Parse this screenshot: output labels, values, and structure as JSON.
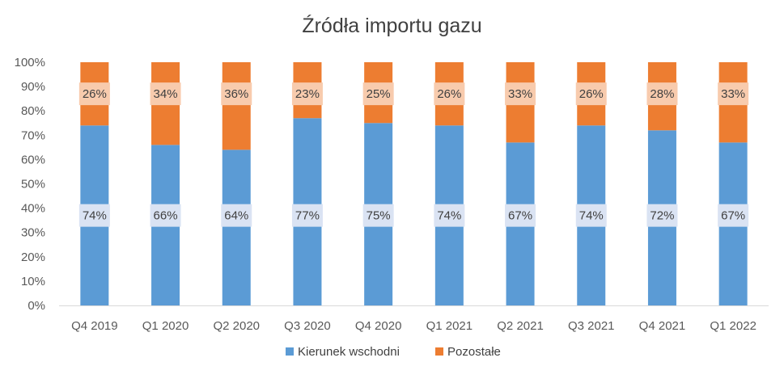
{
  "chart_data": {
    "type": "bar",
    "stacked": true,
    "title": "Źródła importu gazu",
    "categories": [
      "Q4 2019",
      "Q1 2020",
      "Q2 2020",
      "Q3 2020",
      "Q4 2020",
      "Q1 2021",
      "Q2 2021",
      "Q3 2021",
      "Q4 2021",
      "Q1 2022"
    ],
    "series": [
      {
        "name": "Kierunek wschodni",
        "color": "#5B9BD5",
        "label_bg": "#DAE3F3",
        "values": [
          74,
          66,
          64,
          77,
          75,
          74,
          67,
          74,
          72,
          67
        ],
        "labels": [
          "74%",
          "66%",
          "64%",
          "77%",
          "75%",
          "74%",
          "67%",
          "74%",
          "72%",
          "67%"
        ]
      },
      {
        "name": "Pozostałe",
        "color": "#ED7D31",
        "label_bg": "#F8CBAD",
        "values": [
          26,
          34,
          36,
          23,
          25,
          26,
          33,
          26,
          28,
          33
        ],
        "labels": [
          "26%",
          "34%",
          "36%",
          "23%",
          "25%",
          "26%",
          "33%",
          "26%",
          "28%",
          "33%"
        ]
      }
    ],
    "y_ticks": [
      "0%",
      "10%",
      "20%",
      "30%",
      "40%",
      "50%",
      "60%",
      "70%",
      "80%",
      "90%",
      "100%"
    ],
    "ylim": [
      0,
      100
    ],
    "grid": false,
    "legend": "bottom"
  }
}
